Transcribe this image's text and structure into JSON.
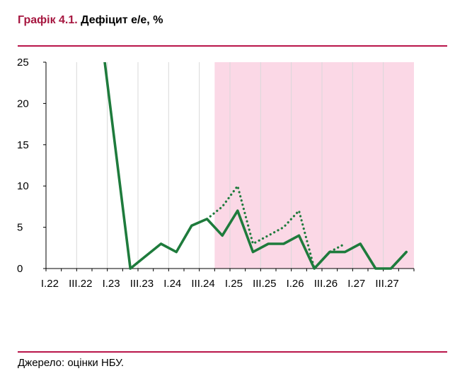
{
  "title": {
    "number": "Графік 4.1.",
    "text": "Дефіцит е/е, %"
  },
  "source": "Джерело: оцінки НБУ.",
  "chart_data": {
    "type": "line",
    "ylim": [
      0,
      25
    ],
    "yticks": [
      "0",
      "5",
      "10",
      "15",
      "20",
      "25"
    ],
    "xtick_labels": [
      "I.22",
      "III.22",
      "I.23",
      "III.23",
      "I.24",
      "III.24",
      "I.25",
      "III.25",
      "I.26",
      "III.26",
      "I.27",
      "III.27"
    ],
    "x": [
      "I.22",
      "II.22",
      "III.22",
      "IV.22",
      "I.23",
      "II.23",
      "III.23",
      "IV.23",
      "I.24",
      "II.24",
      "III.24",
      "IV.24",
      "I.25",
      "II.25",
      "III.25",
      "IV.25",
      "I.26",
      "II.26",
      "III.26",
      "IV.26",
      "I.27",
      "II.27",
      "III.27",
      "IV.27"
    ],
    "forecast_shading": {
      "from": "IV.24",
      "to": "IV.27",
      "color": "#fbd8e6"
    },
    "series": [
      {
        "style": "solid",
        "color": "#1e7b3c",
        "values": [
          null,
          null,
          null,
          30,
          15,
          0,
          1.5,
          3,
          2,
          5.2,
          6,
          4,
          7,
          2,
          3,
          3,
          4,
          0,
          2,
          2,
          3,
          0,
          0,
          2
        ]
      },
      {
        "style": "dotted",
        "color": "#1e7b3c",
        "values": [
          null,
          null,
          null,
          null,
          null,
          null,
          null,
          null,
          null,
          null,
          6,
          7.5,
          10,
          3,
          4,
          5,
          7,
          0,
          2,
          3,
          null,
          null,
          null,
          null
        ]
      }
    ],
    "grid": "vertical",
    "legend": "none"
  }
}
